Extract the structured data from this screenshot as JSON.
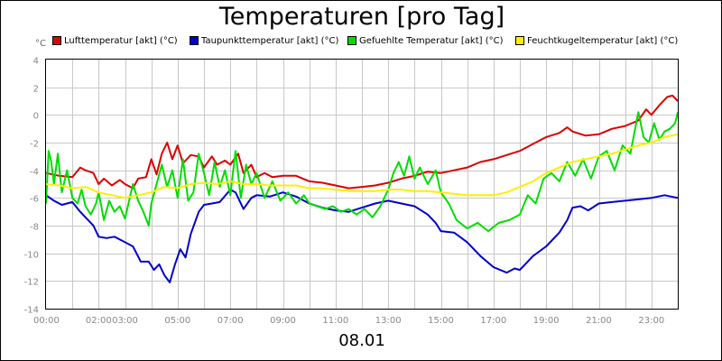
{
  "chart_data": {
    "type": "line",
    "title": "Temperaturen [pro Tag]",
    "date_label": "08.01",
    "y_unit": "°C",
    "xlabel": "",
    "ylabel": "",
    "x_range_hours": [
      0,
      24
    ],
    "ylim": [
      -14,
      4
    ],
    "y_ticks": [
      4,
      2,
      0,
      -2,
      -4,
      -6,
      -8,
      -10,
      -12,
      -14
    ],
    "x_tick_labels": [
      {
        "hour": 0,
        "label": "00:00"
      },
      {
        "hour": 2,
        "label": "02:00"
      },
      {
        "hour": 3,
        "label": "03:00"
      },
      {
        "hour": 5,
        "label": "05:00"
      },
      {
        "hour": 7,
        "label": "07:00"
      },
      {
        "hour": 9,
        "label": "09:00"
      },
      {
        "hour": 11,
        "label": "11:00"
      },
      {
        "hour": 13,
        "label": "13:00"
      },
      {
        "hour": 15,
        "label": "15:00"
      },
      {
        "hour": 17,
        "label": "17:00"
      },
      {
        "hour": 19,
        "label": "19:00"
      },
      {
        "hour": 21,
        "label": "21:00"
      },
      {
        "hour": 23,
        "label": "23:00"
      }
    ],
    "grid": true,
    "legend_position": "top",
    "series": [
      {
        "name": "Lufttemperatur [akt] (°C)",
        "color": "#dd0000",
        "points": [
          [
            0,
            -4.2
          ],
          [
            0.5,
            -4.4
          ],
          [
            1,
            -4.5
          ],
          [
            1.3,
            -3.8
          ],
          [
            1.5,
            -4.0
          ],
          [
            1.8,
            -4.2
          ],
          [
            2.0,
            -5.0
          ],
          [
            2.2,
            -4.6
          ],
          [
            2.5,
            -5.1
          ],
          [
            2.8,
            -4.7
          ],
          [
            3.0,
            -5.0
          ],
          [
            3.3,
            -5.3
          ],
          [
            3.5,
            -4.6
          ],
          [
            3.8,
            -4.5
          ],
          [
            4.0,
            -3.2
          ],
          [
            4.2,
            -4.3
          ],
          [
            4.4,
            -2.8
          ],
          [
            4.6,
            -2.0
          ],
          [
            4.8,
            -3.2
          ],
          [
            5.0,
            -2.2
          ],
          [
            5.2,
            -3.5
          ],
          [
            5.5,
            -2.9
          ],
          [
            5.8,
            -3.0
          ],
          [
            6.0,
            -3.8
          ],
          [
            6.3,
            -3.0
          ],
          [
            6.5,
            -3.6
          ],
          [
            6.8,
            -3.3
          ],
          [
            7.0,
            -3.6
          ],
          [
            7.3,
            -2.8
          ],
          [
            7.5,
            -4.2
          ],
          [
            7.8,
            -3.6
          ],
          [
            8.0,
            -4.5
          ],
          [
            8.3,
            -4.2
          ],
          [
            8.6,
            -4.5
          ],
          [
            9.0,
            -4.4
          ],
          [
            9.5,
            -4.4
          ],
          [
            10.0,
            -4.8
          ],
          [
            10.5,
            -4.9
          ],
          [
            11.0,
            -5.1
          ],
          [
            11.5,
            -5.3
          ],
          [
            12.0,
            -5.2
          ],
          [
            12.5,
            -5.1
          ],
          [
            13.0,
            -4.9
          ],
          [
            13.5,
            -4.6
          ],
          [
            14.0,
            -4.4
          ],
          [
            14.5,
            -4.1
          ],
          [
            15.0,
            -4.2
          ],
          [
            15.5,
            -4.0
          ],
          [
            16.0,
            -3.8
          ],
          [
            16.5,
            -3.4
          ],
          [
            17.0,
            -3.2
          ],
          [
            17.5,
            -2.9
          ],
          [
            18.0,
            -2.6
          ],
          [
            18.5,
            -2.1
          ],
          [
            19.0,
            -1.6
          ],
          [
            19.5,
            -1.3
          ],
          [
            19.8,
            -0.9
          ],
          [
            20.0,
            -1.2
          ],
          [
            20.5,
            -1.5
          ],
          [
            21.0,
            -1.4
          ],
          [
            21.5,
            -1.0
          ],
          [
            22.0,
            -0.8
          ],
          [
            22.5,
            -0.4
          ],
          [
            22.8,
            0.4
          ],
          [
            23.0,
            0.0
          ],
          [
            23.3,
            0.7
          ],
          [
            23.6,
            1.3
          ],
          [
            23.8,
            1.4
          ],
          [
            24.0,
            1.0
          ]
        ]
      },
      {
        "name": "Taupunkttemperatur [akt] (°C)",
        "color": "#0000cc",
        "points": [
          [
            0,
            -5.8
          ],
          [
            0.3,
            -6.2
          ],
          [
            0.6,
            -6.5
          ],
          [
            1.0,
            -6.3
          ],
          [
            1.3,
            -7.0
          ],
          [
            1.6,
            -7.6
          ],
          [
            1.8,
            -8.0
          ],
          [
            2.0,
            -8.8
          ],
          [
            2.3,
            -8.9
          ],
          [
            2.6,
            -8.8
          ],
          [
            3.0,
            -9.2
          ],
          [
            3.3,
            -9.5
          ],
          [
            3.6,
            -10.6
          ],
          [
            3.9,
            -10.6
          ],
          [
            4.1,
            -11.2
          ],
          [
            4.3,
            -10.8
          ],
          [
            4.5,
            -11.6
          ],
          [
            4.7,
            -12.1
          ],
          [
            4.9,
            -10.8
          ],
          [
            5.1,
            -9.7
          ],
          [
            5.3,
            -10.3
          ],
          [
            5.5,
            -8.6
          ],
          [
            5.8,
            -7.0
          ],
          [
            6.0,
            -6.5
          ],
          [
            6.3,
            -6.4
          ],
          [
            6.6,
            -6.3
          ],
          [
            7.0,
            -5.4
          ],
          [
            7.2,
            -5.6
          ],
          [
            7.5,
            -6.8
          ],
          [
            7.8,
            -6.0
          ],
          [
            8.0,
            -5.8
          ],
          [
            8.5,
            -5.9
          ],
          [
            9.0,
            -5.6
          ],
          [
            9.5,
            -5.9
          ],
          [
            10.0,
            -6.4
          ],
          [
            10.5,
            -6.7
          ],
          [
            11.0,
            -6.9
          ],
          [
            11.5,
            -7.0
          ],
          [
            12.0,
            -6.7
          ],
          [
            12.5,
            -6.4
          ],
          [
            13.0,
            -6.2
          ],
          [
            13.5,
            -6.4
          ],
          [
            14.0,
            -6.6
          ],
          [
            14.5,
            -7.2
          ],
          [
            14.8,
            -7.8
          ],
          [
            15.0,
            -8.4
          ],
          [
            15.5,
            -8.5
          ],
          [
            16.0,
            -9.2
          ],
          [
            16.5,
            -10.2
          ],
          [
            17.0,
            -11.0
          ],
          [
            17.5,
            -11.4
          ],
          [
            17.8,
            -11.1
          ],
          [
            18.0,
            -11.2
          ],
          [
            18.5,
            -10.2
          ],
          [
            19.0,
            -9.5
          ],
          [
            19.5,
            -8.5
          ],
          [
            19.8,
            -7.6
          ],
          [
            20.0,
            -6.7
          ],
          [
            20.3,
            -6.6
          ],
          [
            20.6,
            -6.9
          ],
          [
            21.0,
            -6.4
          ],
          [
            21.5,
            -6.3
          ],
          [
            22.0,
            -6.2
          ],
          [
            22.5,
            -6.1
          ],
          [
            23.0,
            -6.0
          ],
          [
            23.5,
            -5.8
          ],
          [
            24.0,
            -6.0
          ]
        ]
      },
      {
        "name": "Gefuehlte Temperatur [akt] (°C)",
        "color": "#00dd00",
        "points": [
          [
            0,
            -6.4
          ],
          [
            0.1,
            -2.6
          ],
          [
            0.2,
            -3.4
          ],
          [
            0.3,
            -5.0
          ],
          [
            0.45,
            -2.8
          ],
          [
            0.6,
            -5.6
          ],
          [
            0.8,
            -4.0
          ],
          [
            1.0,
            -6.0
          ],
          [
            1.2,
            -6.4
          ],
          [
            1.35,
            -5.4
          ],
          [
            1.5,
            -6.6
          ],
          [
            1.7,
            -7.2
          ],
          [
            1.9,
            -6.4
          ],
          [
            2.0,
            -5.6
          ],
          [
            2.2,
            -7.6
          ],
          [
            2.4,
            -6.2
          ],
          [
            2.6,
            -7.0
          ],
          [
            2.8,
            -6.6
          ],
          [
            3.0,
            -7.5
          ],
          [
            3.3,
            -5.0
          ],
          [
            3.5,
            -6.2
          ],
          [
            3.7,
            -7.0
          ],
          [
            3.9,
            -8.0
          ],
          [
            4.0,
            -6.4
          ],
          [
            4.2,
            -5.0
          ],
          [
            4.4,
            -3.6
          ],
          [
            4.6,
            -5.2
          ],
          [
            4.8,
            -4.0
          ],
          [
            5.0,
            -6.0
          ],
          [
            5.2,
            -3.2
          ],
          [
            5.4,
            -6.2
          ],
          [
            5.6,
            -5.6
          ],
          [
            5.8,
            -2.8
          ],
          [
            6.0,
            -4.2
          ],
          [
            6.2,
            -5.8
          ],
          [
            6.4,
            -3.4
          ],
          [
            6.6,
            -5.2
          ],
          [
            6.8,
            -4.0
          ],
          [
            7.0,
            -5.8
          ],
          [
            7.2,
            -2.6
          ],
          [
            7.4,
            -6.0
          ],
          [
            7.6,
            -3.6
          ],
          [
            7.8,
            -5.0
          ],
          [
            8.0,
            -4.2
          ],
          [
            8.3,
            -6.0
          ],
          [
            8.6,
            -4.8
          ],
          [
            8.9,
            -6.2
          ],
          [
            9.2,
            -5.6
          ],
          [
            9.5,
            -6.4
          ],
          [
            9.8,
            -5.8
          ],
          [
            10.0,
            -6.4
          ],
          [
            10.3,
            -6.6
          ],
          [
            10.6,
            -6.8
          ],
          [
            10.9,
            -6.6
          ],
          [
            11.2,
            -7.0
          ],
          [
            11.5,
            -6.8
          ],
          [
            11.8,
            -7.2
          ],
          [
            12.1,
            -6.8
          ],
          [
            12.4,
            -7.4
          ],
          [
            12.7,
            -6.6
          ],
          [
            13.0,
            -5.4
          ],
          [
            13.2,
            -4.2
          ],
          [
            13.4,
            -3.4
          ],
          [
            13.6,
            -4.4
          ],
          [
            13.8,
            -3.0
          ],
          [
            14.0,
            -4.6
          ],
          [
            14.2,
            -3.8
          ],
          [
            14.5,
            -5.0
          ],
          [
            14.8,
            -4.0
          ],
          [
            15.0,
            -5.6
          ],
          [
            15.3,
            -6.4
          ],
          [
            15.6,
            -7.6
          ],
          [
            16.0,
            -8.2
          ],
          [
            16.4,
            -7.8
          ],
          [
            16.8,
            -8.4
          ],
          [
            17.2,
            -7.8
          ],
          [
            17.6,
            -7.6
          ],
          [
            18.0,
            -7.2
          ],
          [
            18.3,
            -5.8
          ],
          [
            18.6,
            -6.4
          ],
          [
            18.9,
            -4.6
          ],
          [
            19.2,
            -4.2
          ],
          [
            19.5,
            -4.8
          ],
          [
            19.8,
            -3.4
          ],
          [
            20.1,
            -4.4
          ],
          [
            20.4,
            -3.2
          ],
          [
            20.7,
            -4.6
          ],
          [
            21.0,
            -3.0
          ],
          [
            21.3,
            -2.6
          ],
          [
            21.6,
            -4.0
          ],
          [
            21.9,
            -2.2
          ],
          [
            22.2,
            -2.8
          ],
          [
            22.5,
            0.2
          ],
          [
            22.7,
            -1.6
          ],
          [
            22.9,
            -2.0
          ],
          [
            23.1,
            -0.6
          ],
          [
            23.3,
            -1.8
          ],
          [
            23.5,
            -1.2
          ],
          [
            23.7,
            -1.0
          ],
          [
            23.9,
            -0.6
          ],
          [
            24.0,
            0.2
          ]
        ]
      },
      {
        "name": "Feuchtkugeltemperatur [akt] (°C)",
        "color": "#ffee00",
        "points": [
          [
            0,
            -5.0
          ],
          [
            0.5,
            -5.1
          ],
          [
            1.0,
            -5.3
          ],
          [
            1.5,
            -5.2
          ],
          [
            2.0,
            -5.6
          ],
          [
            2.5,
            -5.8
          ],
          [
            3.0,
            -6.0
          ],
          [
            3.5,
            -5.8
          ],
          [
            4.0,
            -5.6
          ],
          [
            4.5,
            -5.2
          ],
          [
            5.0,
            -5.3
          ],
          [
            5.5,
            -5.0
          ],
          [
            6.0,
            -4.9
          ],
          [
            6.5,
            -5.0
          ],
          [
            7.0,
            -4.8
          ],
          [
            7.5,
            -5.0
          ],
          [
            8.0,
            -5.0
          ],
          [
            8.5,
            -5.1
          ],
          [
            9.0,
            -5.1
          ],
          [
            9.5,
            -5.1
          ],
          [
            10.0,
            -5.3
          ],
          [
            10.5,
            -5.3
          ],
          [
            11.0,
            -5.4
          ],
          [
            11.5,
            -5.5
          ],
          [
            12.0,
            -5.5
          ],
          [
            12.5,
            -5.5
          ],
          [
            13.0,
            -5.4
          ],
          [
            13.5,
            -5.4
          ],
          [
            14.0,
            -5.5
          ],
          [
            14.5,
            -5.5
          ],
          [
            15.0,
            -5.6
          ],
          [
            15.5,
            -5.7
          ],
          [
            16.0,
            -5.8
          ],
          [
            16.5,
            -5.8
          ],
          [
            17.0,
            -5.8
          ],
          [
            17.5,
            -5.6
          ],
          [
            18.0,
            -5.2
          ],
          [
            18.5,
            -4.8
          ],
          [
            19.0,
            -4.2
          ],
          [
            19.5,
            -3.8
          ],
          [
            20.0,
            -3.4
          ],
          [
            20.5,
            -3.2
          ],
          [
            21.0,
            -3.0
          ],
          [
            21.5,
            -2.8
          ],
          [
            22.0,
            -2.5
          ],
          [
            22.5,
            -2.2
          ],
          [
            23.0,
            -2.0
          ],
          [
            23.5,
            -1.6
          ],
          [
            24.0,
            -1.4
          ]
        ]
      }
    ]
  }
}
